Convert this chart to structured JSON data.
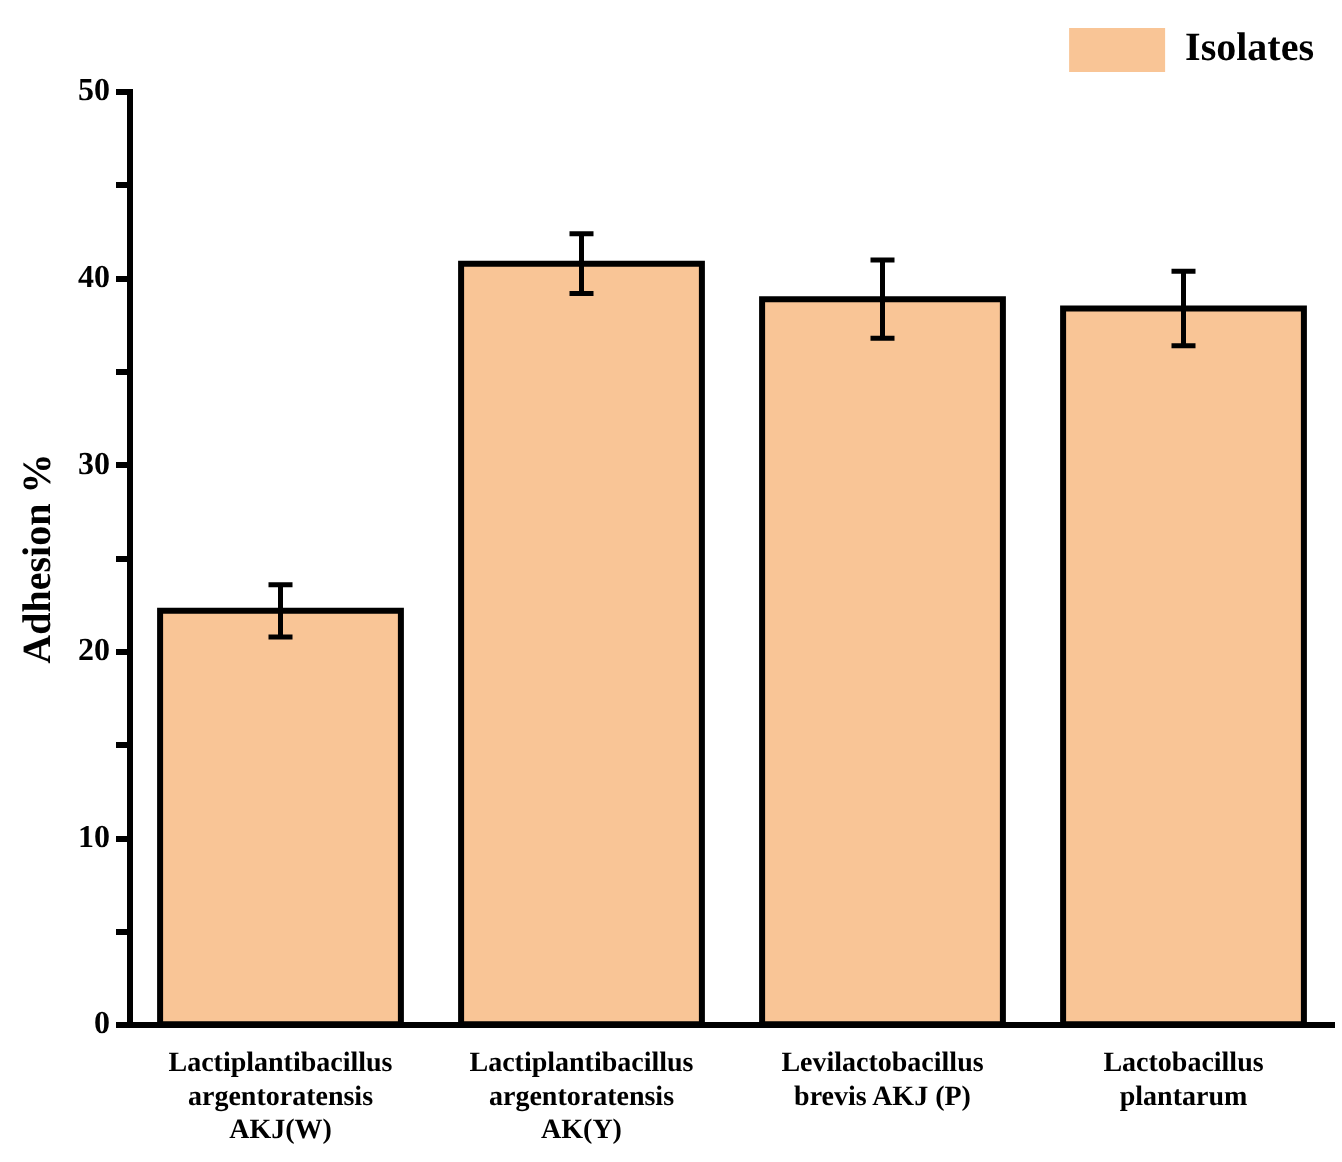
{
  "chart_data": {
    "type": "bar",
    "ylabel": "Adhesion %",
    "categories": [
      "Lactiplantibacillus argentoratensis AKJ(W)",
      "Lactiplantibacillus argentoratensis AK(Y)",
      "Levilactobacillus brevis AKJ (P)",
      "Lactobacillus plantarum"
    ],
    "series": [
      {
        "name": "Isolates",
        "color": "#f9c596",
        "values": [
          22.2,
          40.8,
          38.9,
          38.4
        ],
        "errors": [
          1.4,
          1.6,
          2.1,
          2.0
        ]
      }
    ],
    "ylim": [
      0,
      50
    ],
    "yticks": [
      0,
      {
        "value": 5,
        "label": null
      },
      10,
      {
        "value": 15,
        "label": null
      },
      20,
      {
        "value": 25,
        "label": null
      },
      30,
      {
        "value": 35,
        "label": null
      },
      40,
      {
        "value": 45,
        "label": null
      },
      50
    ],
    "grid": false,
    "legend": "top right"
  }
}
